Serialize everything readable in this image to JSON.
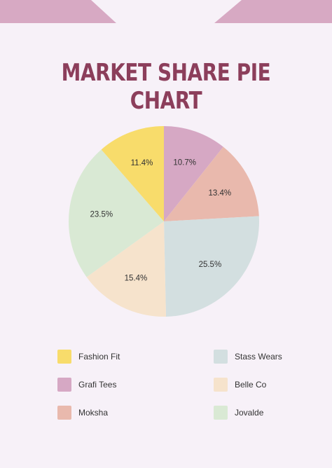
{
  "chart_data": {
    "type": "pie",
    "title": "MARKET SHARE PIE CHART",
    "slices": [
      {
        "name": "Grafi Tees",
        "value": 10.7,
        "label": "10.7%",
        "color": "#d6a8c4"
      },
      {
        "name": "Moksha",
        "value": 13.4,
        "label": "13.4%",
        "color": "#e9b9ad"
      },
      {
        "name": "Stass Wears",
        "value": 25.5,
        "label": "25.5%",
        "color": "#d3dfe0"
      },
      {
        "name": "Belle Co",
        "value": 15.4,
        "label": "15.4%",
        "color": "#f6e3cc"
      },
      {
        "name": "Jovalde",
        "value": 23.5,
        "label": "23.5%",
        "color": "#d9e9d4"
      },
      {
        "name": "Fashion Fit",
        "value": 11.4,
        "label": "11.4%",
        "color": "#f8dc6b"
      }
    ],
    "legend": {
      "left": [
        "Fashion Fit",
        "Grafi Tees",
        "Moksha"
      ],
      "right": [
        "Stass Wears",
        "Belle Co",
        "Jovalde"
      ]
    }
  },
  "colors": {
    "background": "#f7f1f8",
    "title": "#8c3e5b",
    "decoration": "#d7a9c3"
  }
}
